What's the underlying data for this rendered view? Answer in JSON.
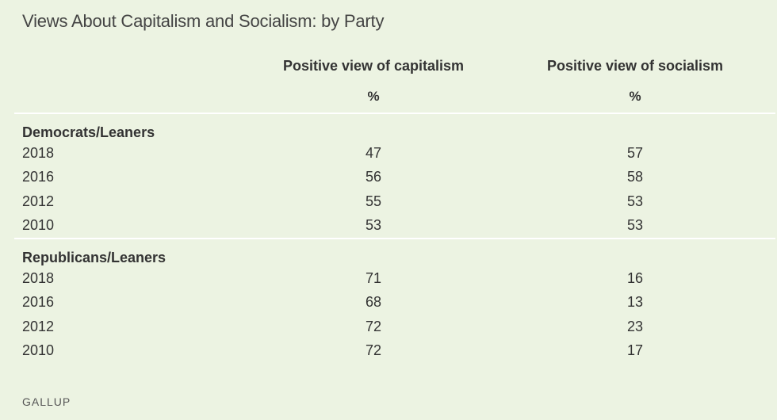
{
  "title": "Views About Capitalism and Socialism: by Party",
  "source": "GALLUP",
  "chart_data": {
    "type": "table",
    "title": "Views About Capitalism and Socialism: by Party",
    "columns": [
      "Positive view of capitalism",
      "Positive view of socialism"
    ],
    "unit": "%",
    "groups": [
      {
        "name": "Democrats/Leaners",
        "rows": [
          {
            "year": "2018",
            "values": [
              "47",
              "57"
            ]
          },
          {
            "year": "2016",
            "values": [
              "56",
              "58"
            ]
          },
          {
            "year": "2012",
            "values": [
              "55",
              "53"
            ]
          },
          {
            "year": "2010",
            "values": [
              "53",
              "53"
            ]
          }
        ]
      },
      {
        "name": "Republicans/Leaners",
        "rows": [
          {
            "year": "2018",
            "values": [
              "71",
              "16"
            ]
          },
          {
            "year": "2016",
            "values": [
              "68",
              "13"
            ]
          },
          {
            "year": "2012",
            "values": [
              "72",
              "23"
            ]
          },
          {
            "year": "2010",
            "values": [
              "72",
              "17"
            ]
          }
        ]
      }
    ]
  }
}
